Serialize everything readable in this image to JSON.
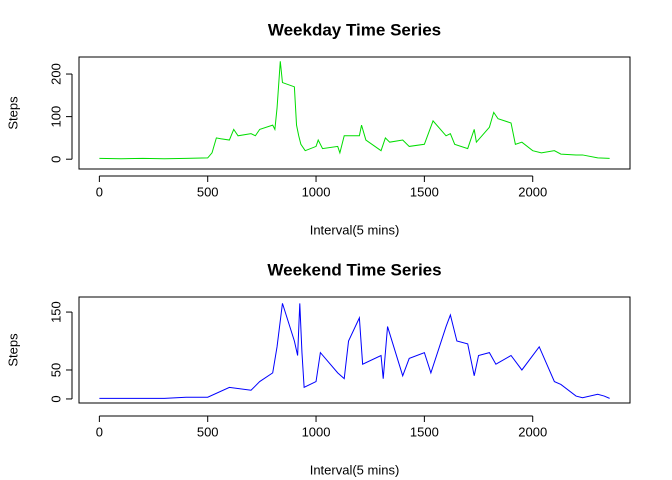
{
  "chart_data": [
    {
      "type": "line",
      "title": "Weekday Time Series",
      "x_label": "Interval(5 mins)",
      "y_label": "Steps",
      "x": [
        0,
        100,
        200,
        300,
        400,
        500,
        520,
        540,
        560,
        600,
        620,
        640,
        700,
        720,
        740,
        800,
        810,
        820,
        835,
        845,
        900,
        910,
        920,
        930,
        950,
        1000,
        1010,
        1030,
        1100,
        1110,
        1130,
        1200,
        1210,
        1230,
        1300,
        1320,
        1340,
        1400,
        1430,
        1500,
        1540,
        1600,
        1620,
        1640,
        1700,
        1730,
        1740,
        1800,
        1820,
        1840,
        1900,
        1920,
        1950,
        2000,
        2040,
        2100,
        2130,
        2200,
        2230,
        2300,
        2355
      ],
      "series": [
        {
          "name": "Weekday",
          "color": "#00dd00",
          "values": [
            2,
            1,
            2,
            1,
            2,
            3,
            15,
            50,
            48,
            45,
            70,
            55,
            60,
            55,
            70,
            80,
            70,
            120,
            230,
            180,
            170,
            80,
            55,
            35,
            20,
            30,
            45,
            25,
            30,
            15,
            55,
            55,
            80,
            45,
            20,
            50,
            40,
            45,
            30,
            35,
            90,
            55,
            60,
            35,
            25,
            70,
            40,
            75,
            110,
            95,
            85,
            35,
            40,
            20,
            15,
            20,
            12,
            10,
            10,
            3,
            2
          ]
        }
      ],
      "xlim": [
        -94,
        2449
      ],
      "ylim": [
        -23,
        240
      ],
      "xticks": [
        0,
        500,
        1000,
        1500,
        2000
      ],
      "yticks": [
        0,
        100,
        200
      ]
    },
    {
      "type": "line",
      "title": "Weekend Time Series",
      "x_label": "Interval(5 mins)",
      "y_label": "Steps",
      "x": [
        0,
        100,
        200,
        300,
        400,
        500,
        600,
        700,
        740,
        800,
        820,
        845,
        900,
        915,
        925,
        935,
        945,
        1000,
        1020,
        1100,
        1130,
        1150,
        1200,
        1215,
        1300,
        1310,
        1330,
        1400,
        1430,
        1500,
        1530,
        1600,
        1620,
        1650,
        1700,
        1730,
        1750,
        1800,
        1830,
        1900,
        1950,
        2030,
        2100,
        2130,
        2200,
        2230,
        2300,
        2330,
        2355
      ],
      "series": [
        {
          "name": "Weekend",
          "color": "#0000ff",
          "values": [
            1,
            1,
            1,
            1,
            3,
            3,
            20,
            15,
            30,
            45,
            90,
            165,
            100,
            75,
            165,
            80,
            20,
            30,
            80,
            45,
            35,
            100,
            140,
            60,
            75,
            35,
            125,
            40,
            70,
            80,
            45,
            125,
            145,
            100,
            95,
            40,
            75,
            80,
            60,
            75,
            50,
            90,
            30,
            25,
            5,
            2,
            8,
            5,
            1
          ]
        }
      ],
      "xlim": [
        -94,
        2449
      ],
      "ylim": [
        -7,
        176
      ],
      "xticks": [
        0,
        500,
        1000,
        1500,
        2000
      ],
      "yticks": [
        0,
        50,
        150
      ]
    }
  ]
}
